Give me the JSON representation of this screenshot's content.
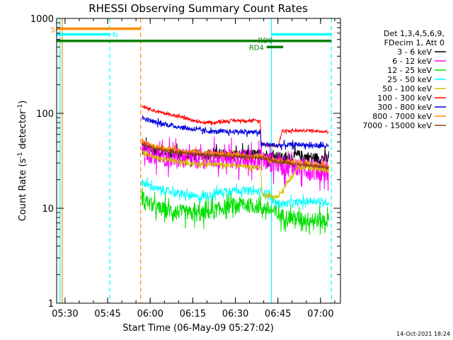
{
  "chart_data": {
    "type": "line",
    "title": "RHESSI Observing Summary Count Rates",
    "xlabel": "Start Time (06-May-09 05:27:02)",
    "ylabel_main": "Count Rate (s",
    "ylabel_sup1": "-1",
    "ylabel_mid": " detector",
    "ylabel_sup2": "-1",
    "ylabel_end": ")",
    "timestamp": "14-Oct-2021 18:24",
    "x_unit": "minutes since 05:27:02",
    "xlim": [
      0,
      100
    ],
    "ylim": [
      1,
      1000
    ],
    "y_scale": "log",
    "x_ticks": [
      {
        "value": 2.97,
        "label": "05:30"
      },
      {
        "value": 17.97,
        "label": "05:45"
      },
      {
        "value": 32.97,
        "label": "06:00"
      },
      {
        "value": 47.97,
        "label": "06:15"
      },
      {
        "value": 62.97,
        "label": "06:30"
      },
      {
        "value": 77.97,
        "label": "06:45"
      },
      {
        "value": 92.97,
        "label": "07:00"
      }
    ],
    "y_ticks": [
      {
        "value": 1,
        "label": "1"
      },
      {
        "value": 10,
        "label": "10"
      },
      {
        "value": 100,
        "label": "100"
      },
      {
        "value": 1000,
        "label": "1000"
      }
    ],
    "legend": {
      "position": "right",
      "header": [
        "Det 1,3,4,5,6,9,",
        "FDecim 1, Att 0"
      ],
      "entries": [
        {
          "label": "3 - 6 keV",
          "color": "#000000"
        },
        {
          "label": "6 - 12 keV",
          "color": "#ff00ff"
        },
        {
          "label": "12 - 25 keV",
          "color": "#00e000"
        },
        {
          "label": "25 - 50 keV",
          "color": "#00ffff"
        },
        {
          "label": "50 - 100 keV",
          "color": "#d4c000"
        },
        {
          "label": "100 - 300 keV",
          "color": "#ff0000"
        },
        {
          "label": "300 - 800 keV",
          "color": "#0000e0"
        },
        {
          "label": "800 - 7000 keV",
          "color": "#ff8c00"
        },
        {
          "label": "7000 - 15000 keV",
          "color": "#8b4513"
        }
      ]
    },
    "flags": [
      {
        "label": "S",
        "color": "#ff8c00",
        "x_start": 0,
        "x_end": 29.6,
        "y": 780
      },
      {
        "label": "N",
        "color": "#00ffff",
        "x_start": 0,
        "x_end": 18.7,
        "y": 680
      },
      {
        "label": "RD0",
        "color": "#00ffff",
        "x_start": 75.7,
        "x_end": 96.8,
        "y": 680
      },
      {
        "label": "",
        "color": "#008000",
        "x_start": 0,
        "x_end": 96.8,
        "y": 580
      },
      {
        "label": "RD4",
        "color": "#008000",
        "x_start": 74.0,
        "x_end": 79.8,
        "y": 500
      }
    ],
    "vlines": [
      {
        "x": 2.0,
        "color": "#ff8c00",
        "style": "solid"
      },
      {
        "x": 1.2,
        "color": "#00ffff",
        "style": "solid"
      },
      {
        "x": 18.7,
        "color": "#00ffff",
        "style": "dashed"
      },
      {
        "x": 29.6,
        "color": "#ff8c00",
        "style": "dashed"
      },
      {
        "x": 75.7,
        "color": "#00ffff",
        "style": "solid"
      },
      {
        "x": 96.8,
        "color": "#00ffff",
        "style": "dashed"
      }
    ],
    "series": [
      {
        "name": "3 - 6 keV",
        "color": "#000000",
        "noise": 0.12,
        "points": [
          [
            30,
            45
          ],
          [
            35,
            40
          ],
          [
            45,
            36
          ],
          [
            55,
            37
          ],
          [
            65,
            36
          ],
          [
            72,
            37
          ],
          [
            78,
            35
          ],
          [
            80,
            33
          ],
          [
            85,
            36
          ],
          [
            90,
            34
          ],
          [
            96,
            33
          ]
        ]
      },
      {
        "name": "6 - 12 keV",
        "color": "#ff00ff",
        "noise": 0.22,
        "points": [
          [
            30,
            42
          ],
          [
            35,
            36
          ],
          [
            45,
            33
          ],
          [
            55,
            33
          ],
          [
            65,
            33
          ],
          [
            72,
            32
          ],
          [
            78,
            30
          ],
          [
            80,
            28
          ],
          [
            85,
            27
          ],
          [
            90,
            25
          ],
          [
            96,
            24
          ]
        ]
      },
      {
        "name": "12 - 25 keV",
        "color": "#00e000",
        "noise": 0.16,
        "points": [
          [
            30,
            13
          ],
          [
            35,
            10
          ],
          [
            45,
            9.0
          ],
          [
            50,
            8.5
          ],
          [
            55,
            9.3
          ],
          [
            60,
            10.5
          ],
          [
            65,
            11.0
          ],
          [
            70,
            10.5
          ],
          [
            74,
            10.0
          ],
          [
            78,
            8.5
          ],
          [
            85,
            7.8
          ],
          [
            90,
            7.5
          ],
          [
            96,
            7.4
          ]
        ]
      },
      {
        "name": "25 - 50 keV",
        "color": "#00ffff",
        "noise": 0.08,
        "points": [
          [
            30,
            19
          ],
          [
            35,
            16
          ],
          [
            45,
            14
          ],
          [
            50,
            13
          ],
          [
            55,
            14
          ],
          [
            60,
            15.5
          ],
          [
            65,
            15.5
          ],
          [
            70,
            15
          ],
          [
            74,
            14.5
          ],
          [
            78,
            11
          ],
          [
            85,
            11.5
          ],
          [
            90,
            12
          ],
          [
            96,
            11.5
          ]
        ]
      },
      {
        "name": "50 - 100 keV",
        "color": "#d4c000",
        "noise": 0.05,
        "points": [
          [
            30,
            40
          ],
          [
            35,
            34
          ],
          [
            45,
            30
          ],
          [
            55,
            29
          ],
          [
            65,
            28
          ],
          [
            70,
            27
          ],
          [
            72,
            27
          ],
          [
            72.3,
            14
          ],
          [
            78,
            13
          ],
          [
            85,
            27
          ],
          [
            90,
            26
          ],
          [
            96,
            26
          ]
        ]
      },
      {
        "name": "100 - 300 keV",
        "color": "#ff0000",
        "noise": 0.03,
        "points": [
          [
            30,
            120
          ],
          [
            35,
            105
          ],
          [
            45,
            90
          ],
          [
            50,
            80
          ],
          [
            55,
            80
          ],
          [
            62,
            84
          ],
          [
            70,
            84
          ],
          [
            71.8,
            82
          ],
          [
            72,
            48
          ],
          [
            78,
            45
          ],
          [
            79.5,
            65
          ],
          [
            90,
            66
          ],
          [
            96,
            64
          ]
        ]
      },
      {
        "name": "300 - 800 keV",
        "color": "#0000e0",
        "noise": 0.05,
        "points": [
          [
            30,
            90
          ],
          [
            35,
            80
          ],
          [
            45,
            70
          ],
          [
            55,
            64
          ],
          [
            65,
            64
          ],
          [
            71.8,
            63
          ],
          [
            72,
            47
          ],
          [
            78,
            46
          ],
          [
            85,
            47
          ],
          [
            90,
            46
          ],
          [
            96,
            45
          ]
        ]
      },
      {
        "name": "800 - 7000 keV",
        "color": "#ff8c00",
        "noise": 0.05,
        "points": [
          [
            30,
            50
          ],
          [
            35,
            44
          ],
          [
            45,
            40
          ],
          [
            55,
            38
          ],
          [
            65,
            36
          ],
          [
            72,
            35
          ],
          [
            78,
            32
          ],
          [
            85,
            30
          ],
          [
            90,
            29
          ],
          [
            96,
            28
          ]
        ]
      },
      {
        "name": "7000 - 15000 keV",
        "color": "#8b4513",
        "noise": 0.03,
        "points": [
          [
            30,
            48
          ],
          [
            35,
            42
          ],
          [
            45,
            38
          ],
          [
            55,
            36
          ],
          [
            65,
            35
          ],
          [
            72,
            34
          ],
          [
            78,
            31
          ],
          [
            85,
            29
          ],
          [
            90,
            28
          ],
          [
            96,
            27
          ]
        ]
      }
    ]
  }
}
